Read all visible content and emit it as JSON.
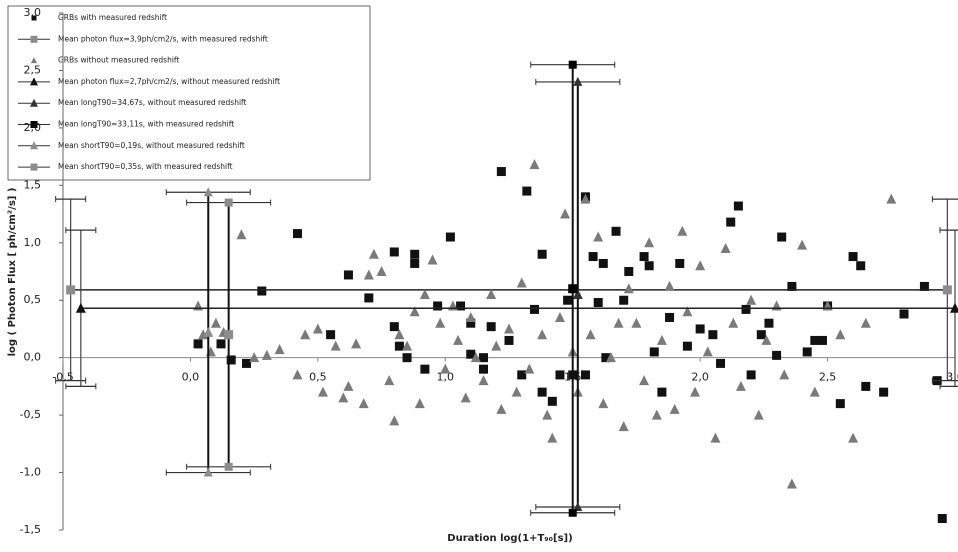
{
  "chart_data": {
    "type": "scatter",
    "xlabel": "Duration  log(1+T₉₀[s])",
    "ylabel": "log ( Photon Flux [ ph/cm²/s] )",
    "xlim": [
      -0.5,
      3.0
    ],
    "ylim": [
      -1.5,
      3.0
    ],
    "xticks": [
      {
        "value": -0.5,
        "label": "-0,5"
      },
      {
        "value": 0,
        "label": "0,0"
      },
      {
        "value": 0.5,
        "label": "0,5"
      },
      {
        "value": 1,
        "label": "1,0"
      },
      {
        "value": 1.5,
        "label": "1,5"
      },
      {
        "value": 2,
        "label": "2,0"
      },
      {
        "value": 2.5,
        "label": "2,5"
      },
      {
        "value": 3,
        "label": "3,0"
      }
    ],
    "yticks": [
      {
        "value": -1.5,
        "label": "-1,5"
      },
      {
        "value": -1,
        "label": "-1,0"
      },
      {
        "value": -0.5,
        "label": "-0,5"
      },
      {
        "value": 0,
        "label": "0,0"
      },
      {
        "value": 0.5,
        "label": "0,5"
      },
      {
        "value": 1,
        "label": "1,0"
      },
      {
        "value": 1.5,
        "label": "1,5"
      },
      {
        "value": 2,
        "label": "2,0"
      },
      {
        "value": 2.5,
        "label": "2,5"
      },
      {
        "value": 3,
        "label": "3,0"
      }
    ],
    "legend": "top-left",
    "series": [
      {
        "name": "GRBs with measured redshift",
        "marker": "square",
        "color": "#111111",
        "x": [
          0.03,
          0.12,
          0.16,
          0.22,
          0.28,
          0.42,
          0.55,
          0.62,
          0.7,
          0.8,
          0.88,
          0.88,
          0.8,
          0.82,
          0.85,
          0.92,
          0.97,
          1.02,
          1.06,
          1.1,
          1.1,
          1.15,
          1.15,
          1.18,
          1.22,
          1.25,
          1.3,
          1.32,
          1.35,
          1.38,
          1.38,
          1.42,
          1.45,
          1.48,
          1.55,
          1.5,
          1.55,
          1.6,
          1.63,
          1.67,
          1.58,
          1.62,
          1.7,
          1.72,
          1.78,
          1.8,
          1.82,
          1.85,
          1.88,
          1.92,
          1.95,
          2.0,
          2.05,
          2.08,
          2.12,
          2.15,
          2.18,
          2.2,
          2.24,
          2.27,
          2.3,
          2.32,
          2.36,
          2.42,
          2.45,
          2.48,
          2.5,
          2.55,
          2.6,
          2.63,
          2.65,
          2.72,
          2.8,
          2.88,
          2.93,
          2.95
        ],
        "values": [
          0.12,
          0.12,
          -0.02,
          -0.05,
          0.58,
          1.08,
          0.2,
          0.72,
          0.52,
          0.92,
          0.9,
          0.82,
          0.27,
          0.1,
          0.0,
          -0.1,
          0.45,
          1.05,
          0.45,
          0.3,
          0.03,
          0.0,
          -0.1,
          0.27,
          1.62,
          0.15,
          -0.15,
          1.45,
          0.42,
          0.9,
          -0.3,
          -0.38,
          -0.15,
          0.5,
          1.4,
          -0.15,
          -0.15,
          0.48,
          0.0,
          1.1,
          0.88,
          0.82,
          0.5,
          0.75,
          0.88,
          0.8,
          0.05,
          -0.3,
          0.35,
          0.82,
          0.1,
          0.25,
          0.2,
          -0.05,
          1.18,
          1.32,
          0.42,
          -0.15,
          0.2,
          0.3,
          0.02,
          1.05,
          0.62,
          0.05,
          0.15,
          0.15,
          0.45,
          -0.4,
          0.88,
          0.8,
          -0.25,
          -0.3,
          0.38,
          0.62,
          -0.2,
          -1.4
        ]
      },
      {
        "name": "Mean photon flux=3,9ph/cm2/s, with measured redshift",
        "marker": "square",
        "color": "#8c8c8c",
        "line": true,
        "x": [
          -0.47,
          2.97
        ],
        "values": [
          0.59,
          0.59
        ],
        "yerr": [
          0.79,
          0.79
        ]
      },
      {
        "name": "GRBs without measured redshift",
        "marker": "triangle",
        "color": "#7a7a7a",
        "x": [
          0.03,
          0.05,
          0.08,
          0.1,
          0.13,
          0.2,
          0.25,
          0.3,
          0.35,
          0.42,
          0.45,
          0.5,
          0.52,
          0.57,
          0.6,
          0.62,
          0.65,
          0.68,
          0.7,
          0.72,
          0.75,
          0.78,
          0.8,
          0.82,
          0.85,
          0.88,
          0.9,
          0.92,
          0.95,
          0.98,
          1.0,
          1.03,
          1.05,
          1.08,
          1.1,
          1.12,
          1.15,
          1.18,
          1.2,
          1.22,
          1.25,
          1.28,
          1.3,
          1.33,
          1.35,
          1.38,
          1.4,
          1.42,
          1.45,
          1.47,
          1.5,
          1.52,
          1.55,
          1.57,
          1.6,
          1.62,
          1.65,
          1.68,
          1.7,
          1.72,
          1.75,
          1.78,
          1.8,
          1.83,
          1.85,
          1.88,
          1.9,
          1.93,
          1.95,
          1.98,
          2.0,
          2.03,
          2.06,
          2.1,
          2.13,
          2.16,
          2.2,
          2.23,
          2.26,
          2.3,
          2.33,
          2.36,
          2.4,
          2.45,
          2.5,
          2.55,
          2.6,
          2.65,
          2.75
        ],
        "values": [
          0.45,
          0.2,
          0.05,
          0.3,
          0.22,
          1.07,
          0.0,
          0.02,
          0.07,
          -0.15,
          0.2,
          0.25,
          -0.3,
          0.1,
          -0.35,
          -0.25,
          0.12,
          -0.4,
          0.72,
          0.9,
          0.75,
          -0.2,
          -0.55,
          0.2,
          0.1,
          0.4,
          -0.4,
          0.55,
          0.85,
          0.3,
          -0.1,
          0.45,
          0.15,
          -0.35,
          0.35,
          0.0,
          -0.2,
          0.55,
          0.1,
          -0.45,
          0.25,
          -0.3,
          0.65,
          -0.1,
          1.68,
          0.2,
          -0.5,
          -0.7,
          0.35,
          1.25,
          0.05,
          -0.3,
          1.38,
          0.2,
          1.05,
          -0.4,
          0.0,
          0.3,
          -0.6,
          0.6,
          0.3,
          -0.2,
          1.0,
          -0.5,
          0.15,
          0.62,
          -0.45,
          1.1,
          0.4,
          -0.3,
          0.8,
          0.05,
          -0.7,
          0.95,
          0.3,
          -0.25,
          0.5,
          -0.5,
          0.15,
          0.45,
          -0.15,
          -1.1,
          0.98,
          -0.3,
          0.45,
          0.2,
          -0.7,
          0.3,
          1.38
        ]
      },
      {
        "name": "Mean photon flux=2,7ph/cm2/s, without measured redshift",
        "marker": "triangle",
        "color": "#111111",
        "line": true,
        "x": [
          -0.43,
          3.0
        ],
        "values": [
          0.43,
          0.43
        ],
        "yerr": [
          0.68,
          0.68
        ]
      },
      {
        "name": "Mean longT90=34,67s, without measured redshift",
        "marker": "triangle",
        "color": "#333333",
        "x": [
          1.52
        ],
        "values": [
          0.55
        ],
        "yerr": [
          1.85
        ]
      },
      {
        "name": "Mean longT90=33,11s, with measured redshift",
        "marker": "square",
        "color": "#000000",
        "x": [
          1.5
        ],
        "values": [
          0.6
        ],
        "yerr": [
          1.95
        ]
      },
      {
        "name": "Mean shortT90=0,19s, without measured redshift",
        "marker": "triangle",
        "color": "#8c8c8c",
        "x": [
          0.07
        ],
        "values": [
          0.22
        ],
        "yerr": [
          1.22
        ]
      },
      {
        "name": "Mean shortT90=0,35s, with measured redshift",
        "marker": "square",
        "color": "#8c8c8c",
        "x": [
          0.15
        ],
        "values": [
          0.2
        ],
        "yerr": [
          1.15
        ]
      }
    ]
  }
}
